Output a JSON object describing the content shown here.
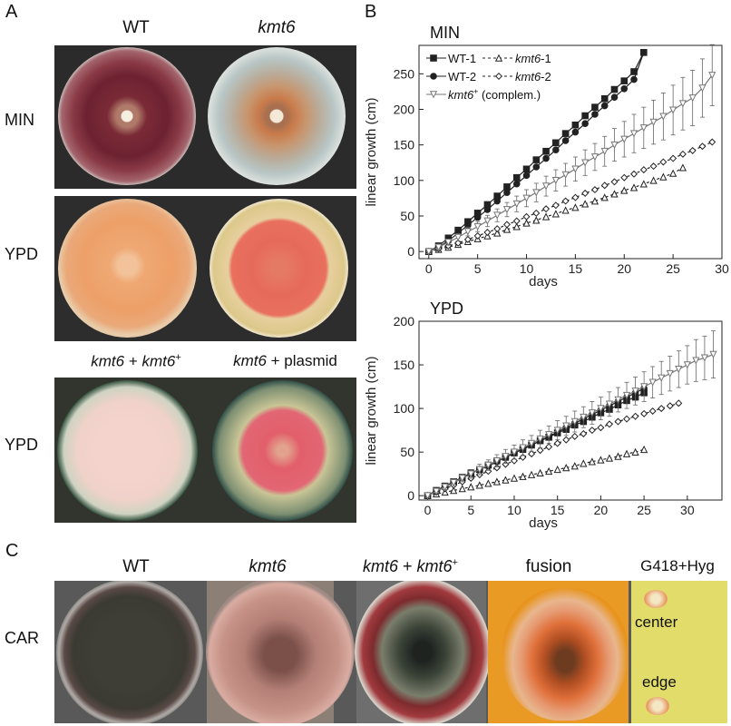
{
  "panels": {
    "a": {
      "letter": "A",
      "col_wt": "WT",
      "col_kmt6": "kmt6",
      "row_min": "MIN",
      "row_ypd": "YPD",
      "row_ypd2": "YPD",
      "comp_label_prefix": "kmt6",
      "comp_label_mid": " + ",
      "comp_label_gene": "kmt6",
      "comp_label_sup": "+",
      "plasmid_label_prefix": "kmt6",
      "plasmid_label_rest": " + plasmid"
    },
    "b": {
      "letter": "B"
    },
    "c": {
      "letter": "C",
      "row_car": "CAR",
      "col_wt": "WT",
      "col_kmt6": "kmt6",
      "col_comp_prefix": "kmt6",
      "col_comp_mid": " + ",
      "col_comp_gene": "kmt6",
      "col_comp_sup": "+",
      "col_fusion": "fusion",
      "col_g418": "G418+Hyg",
      "center_label": "center",
      "edge_label": "edge"
    }
  },
  "chart_data": [
    {
      "type": "line",
      "title": "MIN",
      "xlabel": "days",
      "ylabel": "linear growth (cm)",
      "xlim": [
        -1,
        30
      ],
      "ylim": [
        -10,
        290
      ],
      "xticks": [
        0,
        5,
        10,
        15,
        20,
        25,
        30
      ],
      "yticks": [
        0,
        50,
        100,
        150,
        200,
        250
      ],
      "legend": {
        "placement": "top-left",
        "wt1": "WT-1",
        "kmt6_1_italic": "kmt6",
        "kmt6_1_suffix": "-1",
        "wt2": "WT-2",
        "kmt6_2_italic": "kmt6",
        "kmt6_2_suffix": "-2",
        "comp_italic": "kmt6",
        "comp_sup": "+",
        "comp_suffix": " (complem.)"
      },
      "series": [
        {
          "key": "wt1",
          "marker": "square",
          "filled": true,
          "dash": false,
          "x": [
            0,
            1,
            2,
            3,
            4,
            5,
            6,
            7,
            8,
            9,
            10,
            11,
            12,
            13,
            14,
            15,
            16,
            17,
            18,
            19,
            20,
            21,
            22
          ],
          "y": [
            0,
            8,
            19,
            30,
            42,
            54,
            66,
            78,
            91,
            104,
            116,
            129,
            141,
            153,
            166,
            178,
            191,
            203,
            215,
            228,
            240,
            253,
            280
          ]
        },
        {
          "key": "wt2",
          "marker": "circle",
          "filled": true,
          "dash": false,
          "x": [
            0,
            1,
            2,
            3,
            4,
            5,
            6,
            7,
            8,
            9,
            10,
            11,
            12,
            13,
            14,
            15,
            16,
            17,
            18,
            19,
            20,
            21,
            22
          ],
          "y": [
            0,
            6,
            15,
            26,
            37,
            48,
            59,
            71,
            83,
            95,
            107,
            119,
            131,
            143,
            156,
            168,
            180,
            193,
            205,
            217,
            229,
            242,
            280
          ]
        },
        {
          "key": "kmt6_1",
          "marker": "triangle-up",
          "filled": false,
          "dash": true,
          "x": [
            0,
            1,
            2,
            3,
            4,
            5,
            6,
            7,
            8,
            9,
            10,
            11,
            12,
            13,
            14,
            15,
            16,
            17,
            18,
            19,
            20,
            21,
            22,
            23,
            24,
            25,
            26
          ],
          "y": [
            0,
            3,
            6,
            10,
            14,
            18,
            22,
            26,
            31,
            35,
            40,
            44,
            49,
            53,
            58,
            62,
            67,
            71,
            76,
            81,
            86,
            90,
            95,
            100,
            105,
            110,
            118
          ]
        },
        {
          "key": "kmt6_2",
          "marker": "diamond",
          "filled": false,
          "dash": true,
          "x": [
            0,
            1,
            2,
            3,
            4,
            5,
            6,
            7,
            8,
            9,
            10,
            11,
            12,
            13,
            14,
            15,
            16,
            17,
            18,
            19,
            20,
            21,
            22,
            23,
            24,
            25,
            26,
            27,
            28,
            29
          ],
          "y": [
            0,
            4,
            8,
            12,
            17,
            22,
            27,
            32,
            38,
            43,
            49,
            54,
            60,
            65,
            71,
            76,
            82,
            87,
            93,
            98,
            104,
            109,
            115,
            120,
            126,
            131,
            137,
            142,
            148,
            154
          ]
        },
        {
          "key": "comp",
          "marker": "triangle-down",
          "filled": false,
          "dash": false,
          "errorbars": true,
          "x": [
            0,
            1,
            2,
            3,
            4,
            5,
            6,
            7,
            8,
            9,
            10,
            11,
            12,
            13,
            14,
            15,
            16,
            17,
            18,
            19,
            20,
            21,
            22,
            23,
            24,
            25,
            26,
            27,
            28,
            29
          ],
          "y": [
            0,
            6,
            13,
            20,
            28,
            35,
            43,
            51,
            59,
            67,
            75,
            83,
            92,
            100,
            108,
            116,
            125,
            133,
            141,
            150,
            158,
            166,
            174,
            182,
            190,
            199,
            208,
            216,
            230,
            248
          ],
          "err": [
            2,
            3,
            4,
            5,
            6,
            7,
            8,
            9,
            10,
            11,
            12,
            13,
            14,
            15,
            16,
            17,
            18,
            19,
            21,
            23,
            25,
            27,
            29,
            31,
            33,
            35,
            37,
            39,
            41,
            43
          ]
        }
      ]
    },
    {
      "type": "line",
      "title": "YPD",
      "xlabel": "days",
      "ylabel": "linear growth (cm)",
      "xlim": [
        -1,
        34
      ],
      "ylim": [
        -5,
        200
      ],
      "xticks": [
        0,
        5,
        10,
        15,
        20,
        25,
        30
      ],
      "yticks": [
        0,
        50,
        100,
        150,
        200
      ],
      "series": [
        {
          "key": "wt1",
          "marker": "square",
          "filled": true,
          "dash": false,
          "x": [
            0,
            1,
            2,
            3,
            4,
            5,
            6,
            7,
            8,
            9,
            10,
            11,
            12,
            13,
            14,
            15,
            16,
            17,
            18,
            19,
            20,
            21,
            22,
            23,
            24,
            25
          ],
          "y": [
            0,
            6,
            11,
            16,
            21,
            26,
            30,
            35,
            40,
            44,
            49,
            53,
            58,
            63,
            67,
            72,
            76,
            81,
            85,
            90,
            95,
            99,
            104,
            109,
            113,
            118
          ]
        },
        {
          "key": "wt2",
          "marker": "circle",
          "filled": true,
          "dash": false,
          "x": [
            0,
            1,
            2,
            3,
            4,
            5,
            6,
            7,
            8,
            9,
            10,
            11,
            12,
            13,
            14,
            15,
            16,
            17,
            18,
            19,
            20,
            21,
            22,
            23,
            24,
            25
          ],
          "y": [
            0,
            5,
            10,
            15,
            20,
            25,
            30,
            34,
            39,
            44,
            49,
            54,
            58,
            63,
            68,
            73,
            78,
            83,
            88,
            93,
            98,
            103,
            108,
            113,
            118,
            123
          ]
        },
        {
          "key": "kmt6_1",
          "marker": "triangle-up",
          "filled": false,
          "dash": true,
          "x": [
            0,
            1,
            2,
            3,
            4,
            5,
            6,
            7,
            8,
            9,
            10,
            11,
            12,
            13,
            14,
            15,
            16,
            17,
            18,
            19,
            20,
            21,
            22,
            23,
            24,
            25
          ],
          "y": [
            0,
            2,
            4,
            6,
            8,
            10,
            12,
            14,
            16,
            18,
            20,
            22,
            24,
            26,
            28,
            30,
            32,
            34,
            37,
            39,
            41,
            43,
            45,
            48,
            50,
            53
          ]
        },
        {
          "key": "kmt6_2",
          "marker": "diamond",
          "filled": false,
          "dash": true,
          "x": [
            0,
            1,
            2,
            3,
            4,
            5,
            6,
            7,
            8,
            9,
            10,
            11,
            12,
            13,
            14,
            15,
            16,
            17,
            18,
            19,
            20,
            21,
            22,
            23,
            24,
            25,
            26,
            27,
            28,
            29
          ],
          "y": [
            0,
            4,
            8,
            12,
            16,
            20,
            24,
            28,
            32,
            36,
            40,
            44,
            48,
            52,
            56,
            60,
            64,
            68,
            71,
            75,
            78,
            82,
            85,
            88,
            91,
            94,
            97,
            100,
            103,
            106
          ]
        },
        {
          "key": "comp",
          "marker": "triangle-down",
          "filled": false,
          "dash": false,
          "errorbars": true,
          "x": [
            0,
            1,
            2,
            3,
            4,
            5,
            6,
            7,
            8,
            9,
            10,
            11,
            12,
            13,
            14,
            15,
            16,
            17,
            18,
            19,
            20,
            21,
            22,
            23,
            24,
            25,
            26,
            27,
            28,
            29,
            30,
            31,
            32,
            33
          ],
          "y": [
            0,
            5,
            10,
            15,
            20,
            25,
            30,
            35,
            40,
            45,
            50,
            55,
            60,
            65,
            70,
            75,
            80,
            85,
            90,
            95,
            100,
            105,
            110,
            115,
            120,
            125,
            130,
            135,
            140,
            145,
            150,
            155,
            158,
            162
          ],
          "err": [
            1,
            2,
            3,
            4,
            4,
            5,
            6,
            6,
            7,
            8,
            8,
            9,
            9,
            10,
            10,
            11,
            11,
            12,
            12,
            13,
            13,
            14,
            14,
            15,
            16,
            17,
            18,
            19,
            20,
            21,
            22,
            24,
            25,
            27
          ]
        }
      ]
    }
  ]
}
